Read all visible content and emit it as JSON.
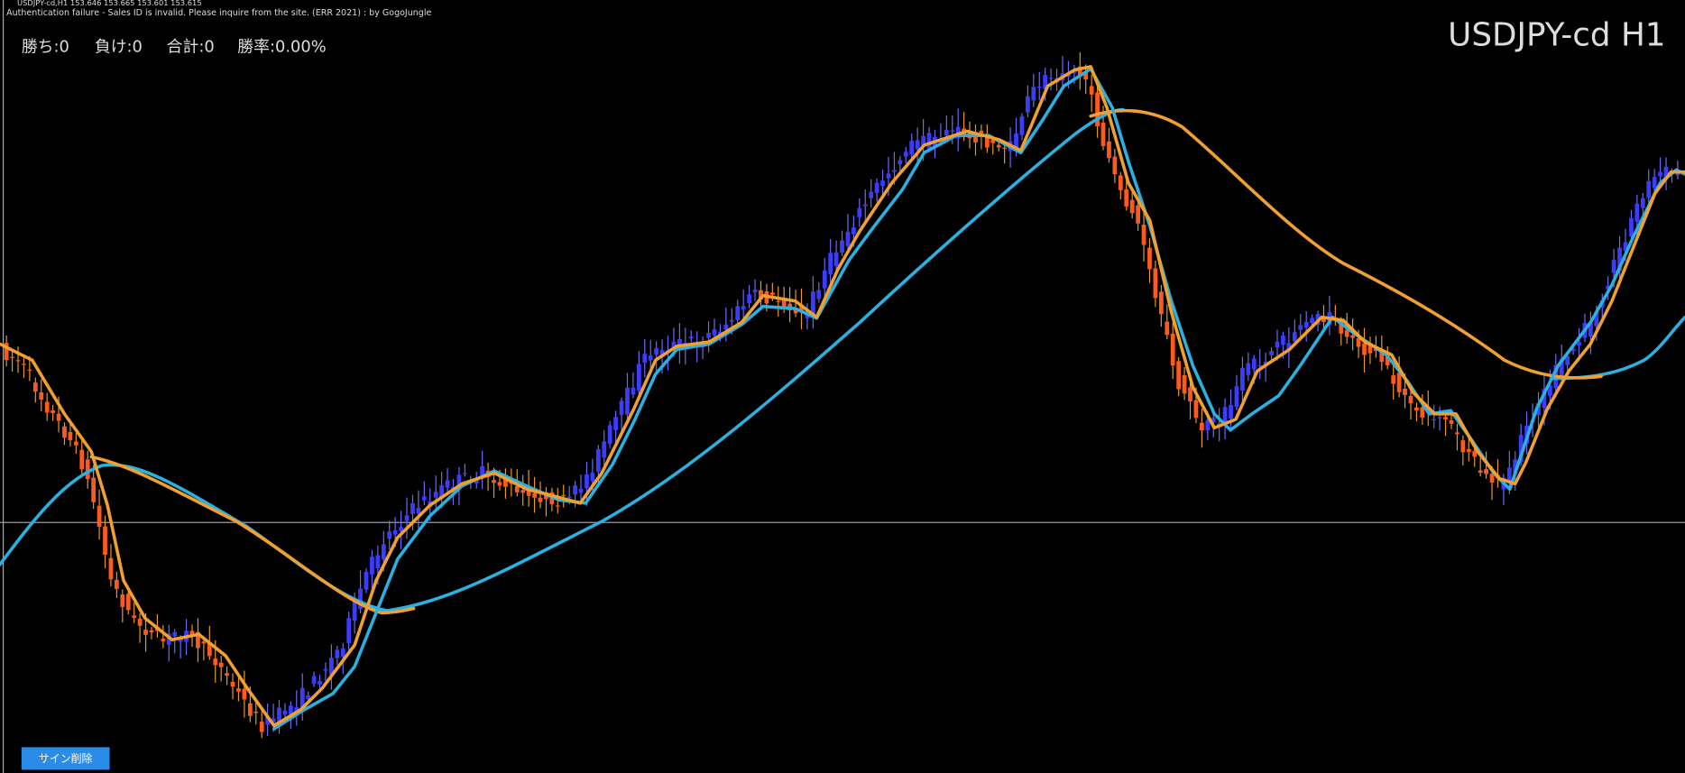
{
  "header": {
    "symbol_line": "USDJPY-cd,H1  153.646 153.665 153.601 153.615",
    "message": "Authentication failure - Sales ID is invalid. Please inquire from the site. (ERR 2021) : by GogoJungle"
  },
  "stats": [
    "勝ち:0",
    "負け:0",
    "合計:0",
    "勝率:0.00%"
  ],
  "chart_label": "USDJPY-cd H1",
  "button": "サイン削除"
}
